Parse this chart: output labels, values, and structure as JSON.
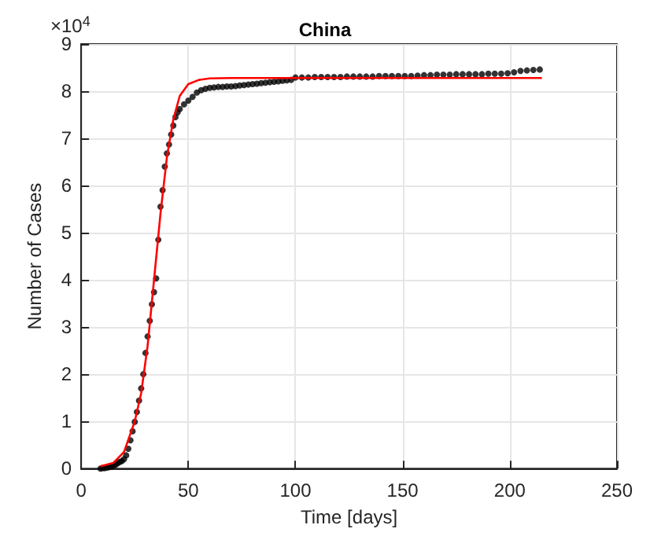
{
  "chart_data": {
    "type": "scatter",
    "title": "China",
    "xlabel": "Time [days]",
    "ylabel": "Number of Cases",
    "annotations": [
      "×10$^{4}$"
    ],
    "xlim": [
      0,
      250
    ],
    "xticks": [
      0,
      50,
      100,
      150,
      200,
      250
    ],
    "ylim": [
      0,
      9
    ],
    "yticks": [
      0,
      1,
      2,
      3,
      4,
      5,
      6,
      7,
      8,
      9
    ],
    "grid": true,
    "marker": "circle",
    "series": [
      {
        "color": "#000000",
        "x": [
          9,
          10,
          11,
          12,
          13,
          14,
          15,
          16,
          17,
          18,
          19,
          20,
          21,
          22,
          23,
          24,
          25,
          26,
          27,
          28,
          29,
          30,
          31,
          32,
          33,
          34,
          35,
          36,
          37,
          38,
          39,
          40,
          41,
          42,
          43,
          44,
          45,
          46,
          48,
          50,
          52,
          54,
          56,
          58,
          60,
          62,
          64,
          66,
          68,
          70,
          72,
          74,
          76,
          78,
          80,
          82,
          84,
          86,
          88,
          90,
          92,
          94,
          96,
          98,
          100,
          103,
          106,
          109,
          112,
          115,
          118,
          121,
          124,
          127,
          130,
          133,
          136,
          139,
          142,
          145,
          148,
          151,
          154,
          157,
          160,
          163,
          166,
          169,
          172,
          175,
          178,
          181,
          184,
          187,
          190,
          193,
          196,
          199,
          202,
          205,
          208,
          211,
          214
        ],
        "values": [
          0.0,
          0.01,
          0.01,
          0.02,
          0.03,
          0.04,
          0.06,
          0.08,
          0.11,
          0.14,
          0.16,
          0.2,
          0.28,
          0.42,
          0.6,
          0.79,
          0.99,
          1.2,
          1.44,
          1.7,
          2.0,
          2.45,
          2.8,
          3.13,
          3.48,
          3.74,
          4.03,
          4.85,
          5.55,
          5.9,
          6.4,
          6.68,
          6.87,
          7.08,
          7.27,
          7.45,
          7.55,
          7.62,
          7.72,
          7.8,
          7.88,
          7.97,
          8.02,
          8.05,
          8.07,
          8.08,
          8.09,
          8.09,
          8.1,
          8.1,
          8.11,
          8.12,
          8.13,
          8.14,
          8.15,
          8.16,
          8.17,
          8.18,
          8.19,
          8.2,
          8.21,
          8.22,
          8.23,
          8.24,
          8.29,
          8.29,
          8.29,
          8.3,
          8.3,
          8.3,
          8.3,
          8.3,
          8.31,
          8.31,
          8.31,
          8.31,
          8.31,
          8.32,
          8.32,
          8.32,
          8.32,
          8.32,
          8.32,
          8.33,
          8.34,
          8.34,
          8.35,
          8.35,
          8.35,
          8.36,
          8.36,
          8.36,
          8.36,
          8.36,
          8.37,
          8.37,
          8.37,
          8.38,
          8.4,
          8.43,
          8.44,
          8.45,
          8.46
        ]
      },
      {
        "type": "line",
        "color": "#ff0000",
        "marker": "none",
        "line_style": "solid",
        "x": [
          9,
          15,
          20,
          25,
          28,
          31,
          34,
          37,
          40,
          43,
          46,
          50,
          55,
          60,
          70,
          215
        ],
        "values": [
          0.05,
          0.12,
          0.35,
          1.0,
          1.6,
          2.6,
          4.0,
          5.4,
          6.6,
          7.4,
          7.9,
          8.15,
          8.24,
          8.27,
          8.28,
          8.28
        ]
      }
    ]
  }
}
